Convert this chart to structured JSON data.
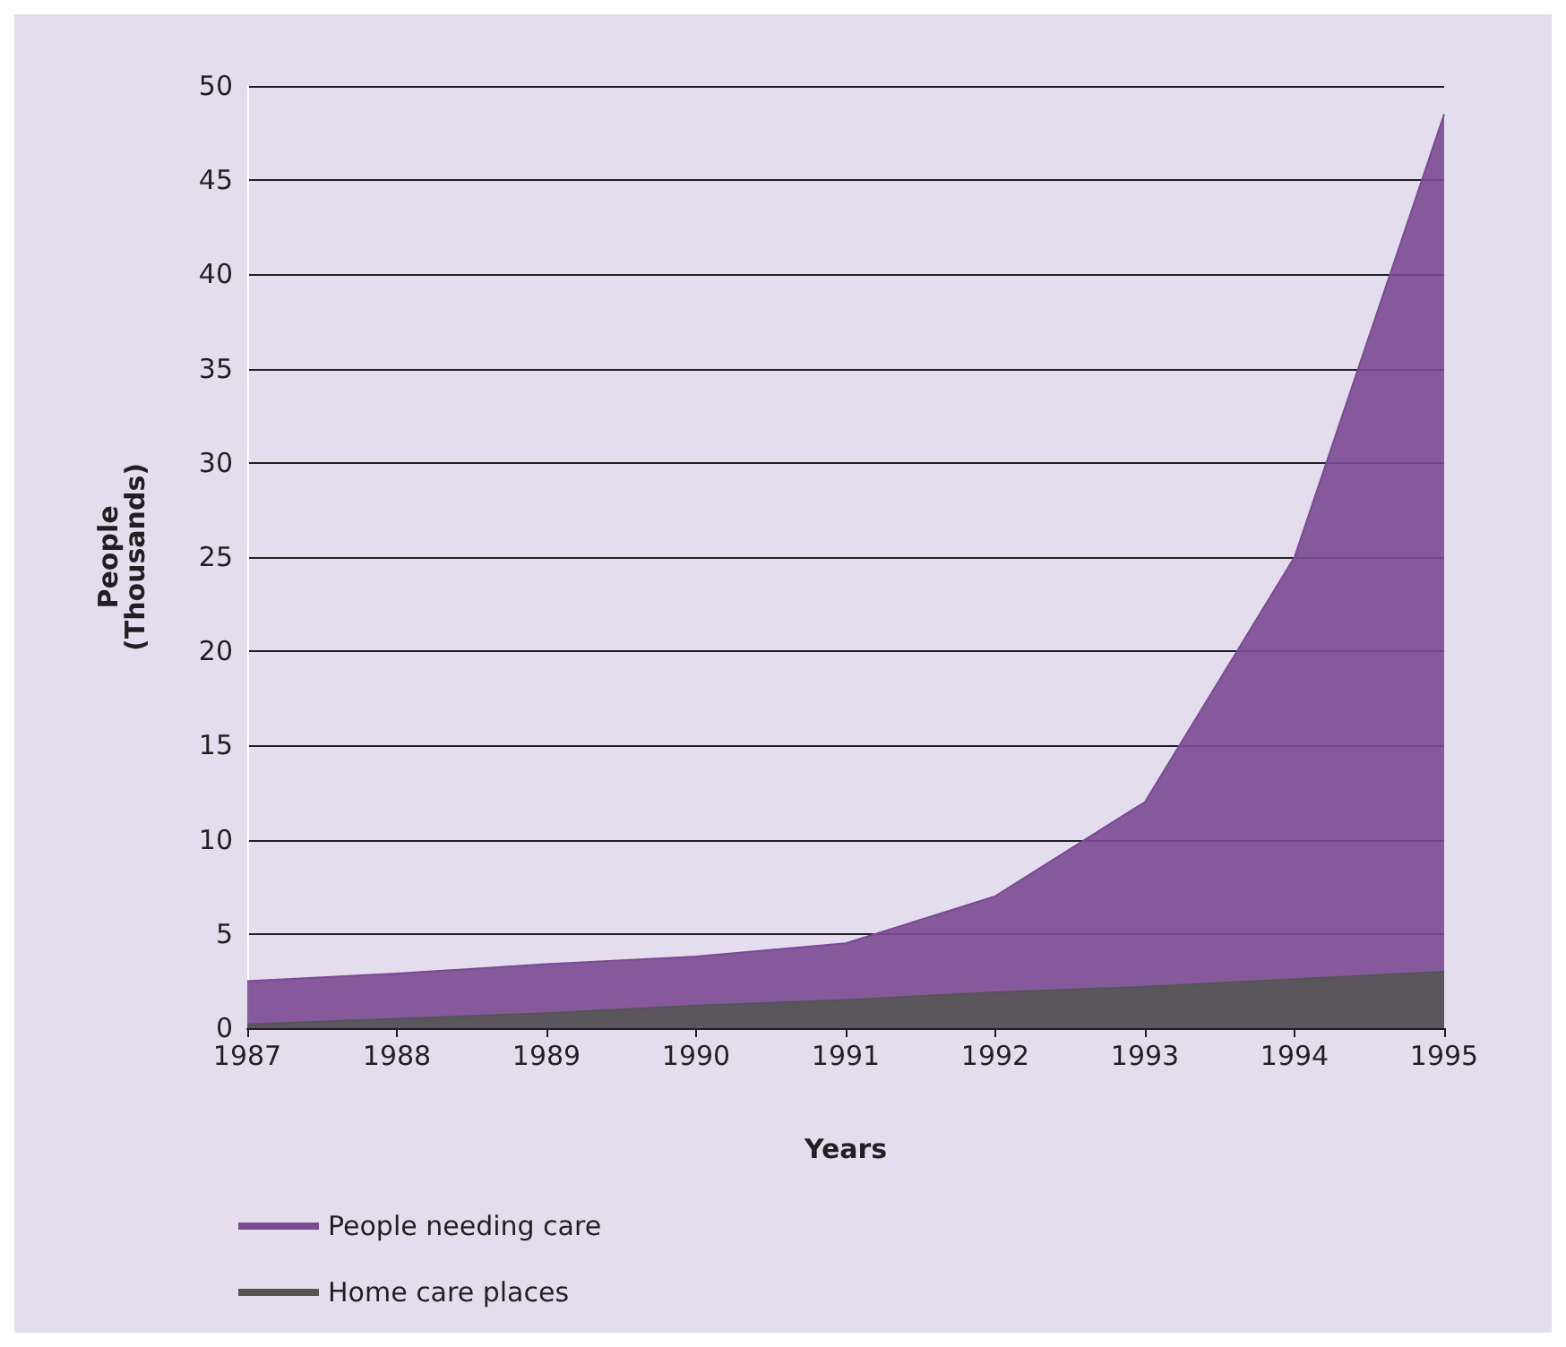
{
  "chart_data": {
    "type": "area",
    "xlabel": "Years",
    "ylabel": "People\n(Thousands)",
    "categories": [
      "1987",
      "1988",
      "1989",
      "1990",
      "1991",
      "1992",
      "1993",
      "1994",
      "1995"
    ],
    "series": [
      {
        "name": "People needing care",
        "color": "#7b4a94",
        "values": [
          2.5,
          2.9,
          3.4,
          3.8,
          4.5,
          7,
          12,
          25,
          48.5
        ]
      },
      {
        "name": "Home care places",
        "color": "#555555",
        "values": [
          0.2,
          0.5,
          0.8,
          1.2,
          1.5,
          1.9,
          2.2,
          2.6,
          3
        ]
      }
    ],
    "ylim": [
      0,
      50
    ],
    "yticks": [
      0,
      5,
      10,
      15,
      20,
      25,
      30,
      35,
      40,
      45,
      50
    ],
    "grid": "y",
    "legend": "bottom left"
  }
}
